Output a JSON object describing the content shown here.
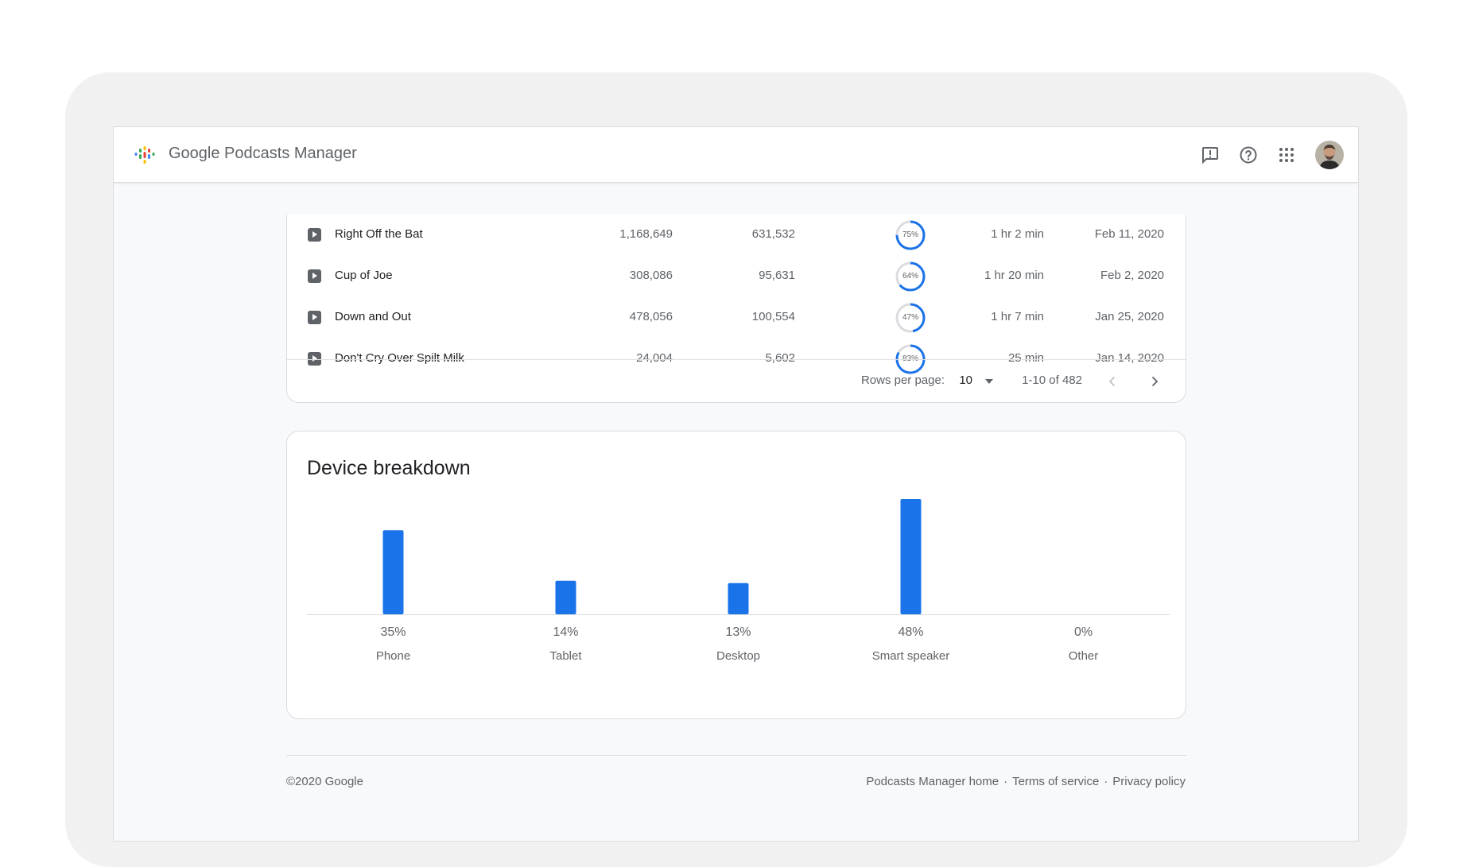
{
  "header": {
    "app_title": "Google Podcasts Manager",
    "icons": [
      "feedback-icon",
      "help-icon",
      "apps-grid-icon",
      "account-avatar"
    ]
  },
  "episodes": {
    "rows": [
      {
        "title": "Right Off the Bat",
        "plays": "1,168,649",
        "listeners": "631,532",
        "completion": 75,
        "completion_label": "75%",
        "duration": "1 hr 2 min",
        "date": "Feb 11, 2020"
      },
      {
        "title": "Cup of Joe",
        "plays": "308,086",
        "listeners": "95,631",
        "completion": 64,
        "completion_label": "64%",
        "duration": "1 hr 20 min",
        "date": "Feb 2, 2020"
      },
      {
        "title": "Down and Out",
        "plays": "478,056",
        "listeners": "100,554",
        "completion": 47,
        "completion_label": "47%",
        "duration": "1 hr 7 min",
        "date": "Jan 25, 2020"
      },
      {
        "title": "Don't Cry Over Spilt Milk",
        "plays": "24,004",
        "listeners": "5,602",
        "completion": 83,
        "completion_label": "83%",
        "duration": "25 min",
        "date": "Jan 14, 2020"
      }
    ],
    "pager": {
      "rows_per_page_label": "Rows per page:",
      "rows_per_page_value": "10",
      "range_label": "1-10 of 482"
    }
  },
  "device_breakdown": {
    "title": "Device breakdown",
    "chart_data": {
      "type": "bar",
      "title": "Device breakdown",
      "categories": [
        "Phone",
        "Tablet",
        "Desktop",
        "Smart speaker",
        "Other"
      ],
      "values": [
        35,
        14,
        13,
        48,
        0
      ],
      "value_labels": [
        "35%",
        "14%",
        "13%",
        "48%",
        "0%"
      ],
      "ylim": [
        0,
        48
      ],
      "grid": false,
      "bar_color": "#1a73e8"
    }
  },
  "footer": {
    "copyright": "©2020 Google",
    "links": [
      "Podcasts Manager home",
      "Terms of service",
      "Privacy policy"
    ],
    "separator": "·"
  },
  "colors": {
    "accent": "#1a73e8",
    "ring_track": "#dadce0"
  }
}
